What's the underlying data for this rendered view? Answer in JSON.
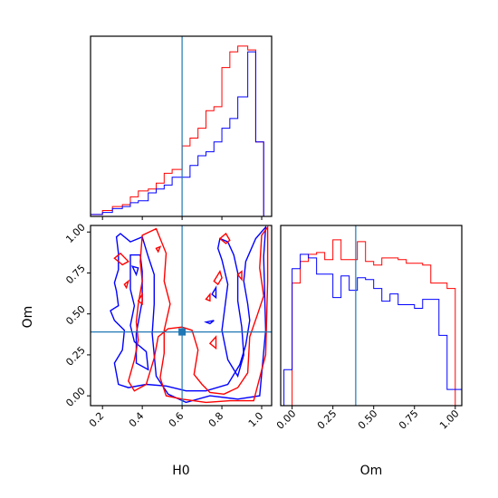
{
  "chart_data": [
    {
      "panel": "H0 marginal",
      "type": "step-histogram",
      "xlabel": "",
      "ylabel": "",
      "xlim": [
        0.14,
        1.05
      ],
      "truth": 0.6,
      "x_ticks": [
        0.2,
        0.4,
        0.6,
        0.8,
        1.0
      ],
      "series": [
        {
          "color": "#ff0000",
          "edges": [
            0.14,
            0.2,
            0.25,
            0.3,
            0.34,
            0.38,
            0.43,
            0.47,
            0.51,
            0.55,
            0.6,
            0.64,
            0.68,
            0.72,
            0.76,
            0.8,
            0.84,
            0.88,
            0.93,
            0.97,
            1.01,
            1.05
          ],
          "values": [
            0.01,
            0.03,
            0.05,
            0.06,
            0.1,
            0.13,
            0.14,
            0.17,
            0.22,
            0.24,
            0.36,
            0.4,
            0.45,
            0.54,
            0.56,
            0.76,
            0.84,
            0.87,
            0.85,
            0.38,
            0.0
          ]
        },
        {
          "color": "#0000ff",
          "edges": [
            0.14,
            0.2,
            0.25,
            0.3,
            0.34,
            0.38,
            0.43,
            0.47,
            0.51,
            0.55,
            0.6,
            0.64,
            0.68,
            0.72,
            0.76,
            0.8,
            0.84,
            0.88,
            0.93,
            0.97,
            1.01,
            1.05
          ],
          "values": [
            0.01,
            0.02,
            0.04,
            0.05,
            0.07,
            0.08,
            0.12,
            0.14,
            0.16,
            0.2,
            0.2,
            0.26,
            0.31,
            0.33,
            0.38,
            0.45,
            0.5,
            0.61,
            0.84,
            0.38,
            0.0
          ]
        }
      ]
    },
    {
      "panel": "H0 vs Om contours",
      "type": "contour",
      "xlabel": "H0",
      "ylabel": "Om",
      "xlim": [
        0.14,
        1.05
      ],
      "ylim": [
        -0.06,
        1.04
      ],
      "truth": {
        "x": 0.6,
        "y": 0.39
      },
      "x_ticks": [
        0.2,
        0.4,
        0.6,
        0.8,
        1.0
      ],
      "y_ticks": [
        0.0,
        0.25,
        0.5,
        0.75,
        1.0
      ],
      "series": [
        {
          "color": "#0000ff",
          "contours": [
            [
              [
                0.27,
                0.97
              ],
              [
                0.29,
                0.99
              ],
              [
                0.34,
                0.94
              ],
              [
                0.4,
                0.97
              ],
              [
                0.43,
                0.85
              ],
              [
                0.46,
                0.74
              ],
              [
                0.46,
                0.56
              ],
              [
                0.45,
                0.38
              ],
              [
                0.47,
                0.12
              ],
              [
                0.53,
                0.01
              ],
              [
                0.62,
                -0.04
              ],
              [
                0.74,
                0.0
              ],
              [
                0.88,
                -0.02
              ],
              [
                0.99,
                0.0
              ],
              [
                1.02,
                0.4
              ],
              [
                1.01,
                0.85
              ],
              [
                1.02,
                1.03
              ],
              [
                0.97,
                0.96
              ],
              [
                0.92,
                0.82
              ],
              [
                0.91,
                0.7
              ],
              [
                0.93,
                0.56
              ],
              [
                0.94,
                0.46
              ],
              [
                0.92,
                0.31
              ],
              [
                0.89,
                0.19
              ],
              [
                0.83,
                0.07
              ],
              [
                0.72,
                0.03
              ],
              [
                0.62,
                0.03
              ],
              [
                0.52,
                0.06
              ],
              [
                0.42,
                0.07
              ],
              [
                0.33,
                0.05
              ],
              [
                0.28,
                0.07
              ],
              [
                0.26,
                0.2
              ],
              [
                0.3,
                0.28
              ],
              [
                0.31,
                0.4
              ],
              [
                0.26,
                0.46
              ],
              [
                0.24,
                0.52
              ],
              [
                0.28,
                0.55
              ],
              [
                0.27,
                0.64
              ],
              [
                0.26,
                0.69
              ],
              [
                0.28,
                0.77
              ],
              [
                0.28,
                0.87
              ],
              [
                0.27,
                0.97
              ]
            ],
            [
              [
                0.34,
                0.86
              ],
              [
                0.39,
                0.86
              ],
              [
                0.4,
                0.76
              ],
              [
                0.4,
                0.58
              ],
              [
                0.37,
                0.38
              ],
              [
                0.37,
                0.2
              ],
              [
                0.43,
                0.16
              ],
              [
                0.42,
                0.27
              ],
              [
                0.36,
                0.33
              ],
              [
                0.34,
                0.43
              ],
              [
                0.36,
                0.55
              ],
              [
                0.34,
                0.65
              ],
              [
                0.34,
                0.76
              ],
              [
                0.34,
                0.86
              ]
            ],
            [
              [
                0.78,
                0.9
              ],
              [
                0.8,
                0.83
              ],
              [
                0.83,
                0.68
              ],
              [
                0.8,
                0.4
              ],
              [
                0.83,
                0.22
              ],
              [
                0.88,
                0.12
              ],
              [
                0.91,
                0.25
              ],
              [
                0.9,
                0.42
              ],
              [
                0.88,
                0.58
              ],
              [
                0.88,
                0.75
              ],
              [
                0.86,
                0.86
              ],
              [
                0.83,
                0.94
              ],
              [
                0.79,
                0.96
              ],
              [
                0.78,
                0.9
              ]
            ],
            [
              [
                0.75,
                0.62
              ],
              [
                0.77,
                0.66
              ],
              [
                0.77,
                0.6
              ],
              [
                0.75,
                0.62
              ]
            ],
            [
              [
                0.74,
                0.44
              ],
              [
                0.76,
                0.46
              ],
              [
                0.72,
                0.45
              ],
              [
                0.74,
                0.44
              ]
            ],
            [
              [
                0.35,
                0.79
              ],
              [
                0.38,
                0.78
              ],
              [
                0.37,
                0.74
              ],
              [
                0.35,
                0.79
              ]
            ]
          ]
        },
        {
          "color": "#ff0000",
          "contours": [
            [
              [
                0.4,
                0.98
              ],
              [
                0.47,
                1.02
              ],
              [
                0.52,
                0.87
              ],
              [
                0.51,
                0.7
              ],
              [
                0.54,
                0.56
              ],
              [
                0.51,
                0.4
              ],
              [
                0.51,
                0.26
              ],
              [
                0.49,
                0.11
              ],
              [
                0.52,
                0.0
              ],
              [
                0.6,
                -0.02
              ],
              [
                0.72,
                -0.04
              ],
              [
                0.84,
                -0.03
              ],
              [
                0.96,
                -0.03
              ],
              [
                1.02,
                0.25
              ],
              [
                1.03,
                0.7
              ],
              [
                1.03,
                1.03
              ],
              [
                1.0,
                0.98
              ],
              [
                0.99,
                0.78
              ],
              [
                1.01,
                0.61
              ],
              [
                0.98,
                0.5
              ],
              [
                0.94,
                0.36
              ],
              [
                0.93,
                0.14
              ],
              [
                0.88,
                0.05
              ],
              [
                0.81,
                0.01
              ],
              [
                0.74,
                0.02
              ],
              [
                0.7,
                0.07
              ],
              [
                0.66,
                0.13
              ],
              [
                0.68,
                0.28
              ],
              [
                0.65,
                0.4
              ],
              [
                0.6,
                0.42
              ],
              [
                0.53,
                0.41
              ],
              [
                0.48,
                0.36
              ],
              [
                0.46,
                0.23
              ],
              [
                0.42,
                0.07
              ],
              [
                0.36,
                0.03
              ],
              [
                0.33,
                0.09
              ],
              [
                0.36,
                0.22
              ],
              [
                0.38,
                0.34
              ],
              [
                0.37,
                0.45
              ],
              [
                0.38,
                0.56
              ],
              [
                0.4,
                0.7
              ],
              [
                0.39,
                0.82
              ],
              [
                0.4,
                0.98
              ]
            ],
            [
              [
                0.26,
                0.84
              ],
              [
                0.29,
                0.87
              ],
              [
                0.33,
                0.82
              ],
              [
                0.3,
                0.8
              ],
              [
                0.27,
                0.83
              ],
              [
                0.26,
                0.84
              ]
            ],
            [
              [
                0.79,
                0.96
              ],
              [
                0.82,
                0.99
              ],
              [
                0.84,
                0.95
              ],
              [
                0.82,
                0.93
              ],
              [
                0.79,
                0.96
              ]
            ],
            [
              [
                0.76,
                0.7
              ],
              [
                0.79,
                0.76
              ],
              [
                0.8,
                0.72
              ],
              [
                0.78,
                0.68
              ],
              [
                0.76,
                0.7
              ]
            ],
            [
              [
                0.72,
                0.59
              ],
              [
                0.74,
                0.62
              ],
              [
                0.74,
                0.58
              ],
              [
                0.72,
                0.59
              ]
            ],
            [
              [
                0.74,
                0.32
              ],
              [
                0.77,
                0.36
              ],
              [
                0.77,
                0.29
              ],
              [
                0.74,
                0.32
              ]
            ],
            [
              [
                0.88,
                0.74
              ],
              [
                0.9,
                0.76
              ],
              [
                0.9,
                0.71
              ],
              [
                0.88,
                0.74
              ]
            ],
            [
              [
                0.38,
                0.58
              ],
              [
                0.4,
                0.62
              ],
              [
                0.4,
                0.56
              ],
              [
                0.38,
                0.58
              ]
            ],
            [
              [
                0.47,
                0.9
              ],
              [
                0.49,
                0.91
              ],
              [
                0.48,
                0.88
              ],
              [
                0.47,
                0.9
              ]
            ],
            [
              [
                0.31,
                0.68
              ],
              [
                0.33,
                0.7
              ],
              [
                0.32,
                0.66
              ],
              [
                0.31,
                0.68
              ]
            ]
          ]
        }
      ]
    },
    {
      "panel": "Om marginal",
      "type": "step-histogram",
      "xlabel": "Om",
      "ylabel": "",
      "xlim": [
        -0.07,
        1.04
      ],
      "truth": 0.39,
      "x_ticks": [
        0.0,
        0.25,
        0.5,
        0.75,
        1.0
      ],
      "series": [
        {
          "color": "#ff0000",
          "edges": [
            0.0,
            0.05,
            0.1,
            0.15,
            0.2,
            0.25,
            0.3,
            0.35,
            0.4,
            0.45,
            0.5,
            0.55,
            0.6,
            0.65,
            0.7,
            0.75,
            0.8,
            0.85,
            0.9,
            0.95,
            1.0
          ],
          "values": [
            0.68,
            0.8,
            0.84,
            0.85,
            0.81,
            0.92,
            0.81,
            0.81,
            0.91,
            0.8,
            0.78,
            0.82,
            0.82,
            0.81,
            0.79,
            0.79,
            0.78,
            0.68,
            0.68,
            0.65
          ]
        },
        {
          "color": "#0000ff",
          "edges": [
            -0.05,
            0.0,
            0.05,
            0.1,
            0.15,
            0.2,
            0.25,
            0.3,
            0.35,
            0.4,
            0.45,
            0.5,
            0.55,
            0.6,
            0.65,
            0.7,
            0.75,
            0.8,
            0.85,
            0.9,
            0.95,
            1.04
          ],
          "values": [
            0.2,
            0.76,
            0.84,
            0.82,
            0.73,
            0.73,
            0.6,
            0.72,
            0.64,
            0.71,
            0.7,
            0.65,
            0.58,
            0.62,
            0.56,
            0.56,
            0.54,
            0.59,
            0.59,
            0.39,
            0.09
          ]
        }
      ]
    }
  ],
  "colors": {
    "truth_line": "#1f77b4",
    "frame": "#000000"
  }
}
